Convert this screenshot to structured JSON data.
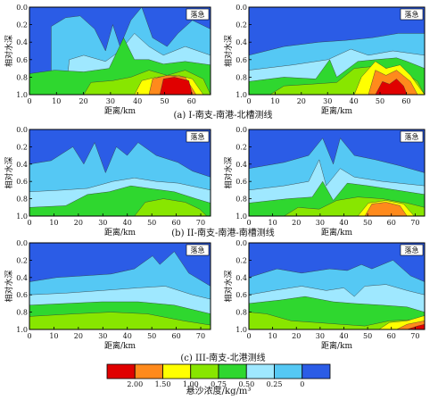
{
  "chart_data": [
    {
      "type": "heatmap",
      "panel": "a-left",
      "tag": "落急",
      "xlabel": "距离/km",
      "ylabel": "相对水深",
      "xticks": [
        "0",
        "10",
        "20",
        "30",
        "40",
        "50",
        "60"
      ],
      "yticks": [
        "0.0",
        "0.2",
        "0.4",
        "0.6",
        "0.8",
        "1.0"
      ],
      "xlim": [
        0,
        67
      ],
      "ylim": [
        0,
        1
      ]
    },
    {
      "type": "heatmap",
      "panel": "a-right",
      "tag": "落急",
      "xlabel": "距离/km",
      "ylabel": "相对水深",
      "xticks": [
        "0",
        "10",
        "20",
        "30",
        "40",
        "50",
        "60"
      ],
      "yticks": [
        "0.0",
        "0.2",
        "0.4",
        "0.6",
        "0.8",
        "1.0"
      ],
      "xlim": [
        0,
        67
      ],
      "ylim": [
        0,
        1
      ]
    },
    {
      "type": "heatmap",
      "panel": "b-left",
      "tag": "落急",
      "xlabel": "距离/km",
      "ylabel": "相对水深",
      "xticks": [
        "0",
        "10",
        "20",
        "30",
        "40",
        "50",
        "60",
        "70"
      ],
      "yticks": [
        "0.0",
        "0.2",
        "0.4",
        "0.6",
        "0.8",
        "1.0"
      ],
      "xlim": [
        0,
        74
      ],
      "ylim": [
        0,
        1
      ]
    },
    {
      "type": "heatmap",
      "panel": "b-right",
      "tag": "落急",
      "xlabel": "距离/km",
      "ylabel": "相对水深",
      "xticks": [
        "0",
        "10",
        "20",
        "30",
        "40",
        "50",
        "60",
        "70"
      ],
      "yticks": [
        "0.0",
        "0.2",
        "0.4",
        "0.6",
        "0.8",
        "1.0"
      ],
      "xlim": [
        0,
        74
      ],
      "ylim": [
        0,
        1
      ]
    },
    {
      "type": "heatmap",
      "panel": "c-left",
      "tag": "落急",
      "xlabel": "距离/km",
      "ylabel": "相对水深",
      "xticks": [
        "0",
        "10",
        "20",
        "30",
        "40",
        "50",
        "60",
        "70"
      ],
      "yticks": [
        "0.0",
        "0.2",
        "0.4",
        "0.6",
        "0.8",
        "1.0"
      ],
      "xlim": [
        0,
        74
      ],
      "ylim": [
        0,
        1
      ]
    },
    {
      "type": "heatmap",
      "panel": "c-right",
      "tag": "落急",
      "xlabel": "距离/km",
      "ylabel": "相对水深",
      "xticks": [
        "0",
        "10",
        "20",
        "30",
        "40",
        "50",
        "60",
        "70"
      ],
      "yticks": [
        "0.0",
        "0.2",
        "0.4",
        "0.6",
        "0.8",
        "1.0"
      ],
      "xlim": [
        0,
        74
      ],
      "ylim": [
        0,
        1
      ]
    }
  ],
  "captions": {
    "a": "(a) I-南支-南港-北槽测线",
    "b": "(b) II-南支-南港-南槽测线",
    "c": "(c) III-南支-北港测线"
  },
  "colorbar": {
    "labels": [
      "2.00",
      "1.50",
      "1.00",
      "0.75",
      "0.50",
      "0.25",
      "0"
    ],
    "title": "悬沙浓度/kg/m³",
    "colors": [
      "#e00000",
      "#ff8a1c",
      "#ffff00",
      "#88e600",
      "#2fd72f",
      "#9fe8ff",
      "#55c8f4",
      "#2b5ce6"
    ]
  },
  "colors": {
    "deep_blue": "#2b5ce6",
    "light_blue": "#55c8f4",
    "pale_cyan": "#9fe8ff",
    "light_green": "#88e600",
    "green": "#2fd72f",
    "yellow": "#ffff00",
    "orange": "#ff8a1c",
    "red": "#e00000"
  }
}
